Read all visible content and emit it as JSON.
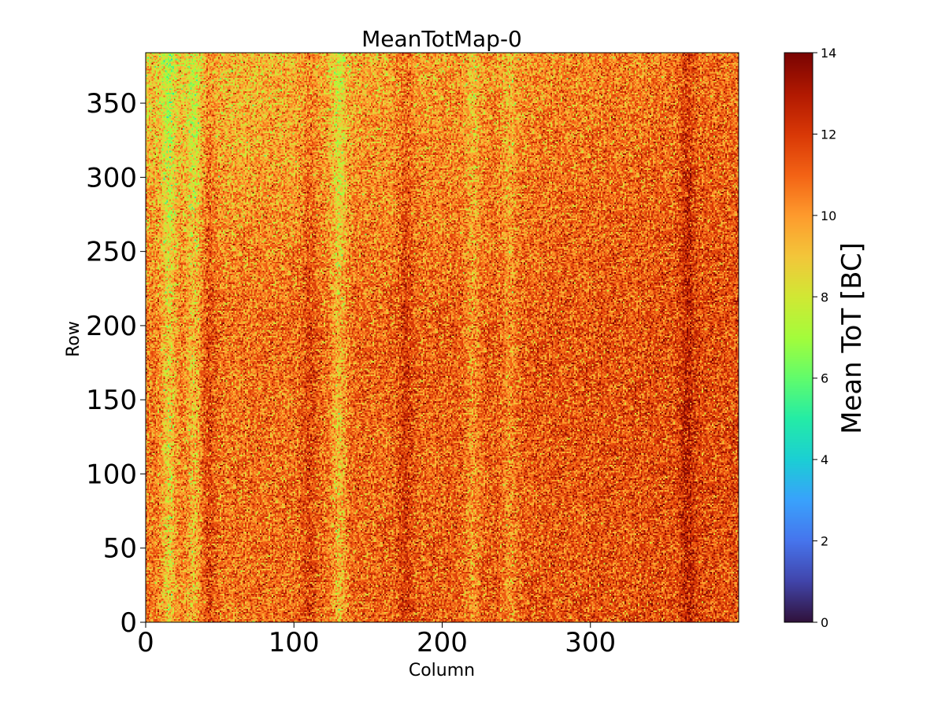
{
  "chart_data": {
    "type": "heatmap",
    "title": "MeanTotMap-0",
    "xlabel": "Column",
    "ylabel": "Row",
    "xlim": [
      0,
      400
    ],
    "ylim": [
      0,
      384
    ],
    "xticks": [
      0,
      100,
      200,
      300
    ],
    "yticks": [
      0,
      50,
      100,
      150,
      200,
      250,
      300,
      350
    ],
    "matrix_size": {
      "columns": 400,
      "rows": 384
    },
    "colorbar": {
      "label": "Mean ToT [BC]",
      "range": [
        0,
        14
      ],
      "ticks": [
        0,
        2,
        4,
        6,
        8,
        10,
        12,
        14
      ],
      "colormap": "turbo",
      "colormap_stops": [
        {
          "value": 0,
          "color": "#30123b"
        },
        {
          "value": 1,
          "color": "#4145ab"
        },
        {
          "value": 2,
          "color": "#4675ed"
        },
        {
          "value": 3,
          "color": "#39a2fc"
        },
        {
          "value": 4,
          "color": "#1bcfd4"
        },
        {
          "value": 5,
          "color": "#24eca6"
        },
        {
          "value": 6,
          "color": "#61fc6c"
        },
        {
          "value": 7,
          "color": "#a4fc3b"
        },
        {
          "value": 8,
          "color": "#d1e834"
        },
        {
          "value": 9,
          "color": "#f3c63a"
        },
        {
          "value": 10,
          "color": "#fe9b2d"
        },
        {
          "value": 11,
          "color": "#f36315"
        },
        {
          "value": 12,
          "color": "#d93806"
        },
        {
          "value": 13,
          "color": "#b11901"
        },
        {
          "value": 14,
          "color": "#7a0402"
        }
      ]
    },
    "value_profile": {
      "base_mean": 10.6,
      "pixel_noise_sd": 1.2,
      "top_rows_lower_by": 1.8,
      "right_side_higher_by": 1.0,
      "low_value_column_bands": [
        {
          "column": 15,
          "delta": -1.8
        },
        {
          "column": 32,
          "delta": -1.4
        },
        {
          "column": 130,
          "delta": -1.6
        },
        {
          "column": 220,
          "delta": -1.0
        },
        {
          "column": 245,
          "delta": -1.0
        }
      ],
      "high_value_column_bands": [
        {
          "column": 42,
          "delta": 0.9
        },
        {
          "column": 110,
          "delta": 0.8
        },
        {
          "column": 175,
          "delta": 0.9
        },
        {
          "column": 365,
          "delta": 1.2
        }
      ]
    }
  }
}
